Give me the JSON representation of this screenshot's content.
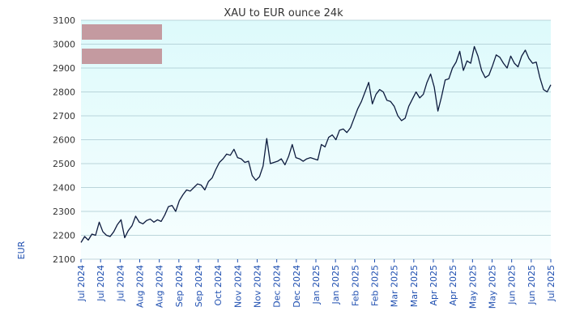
{
  "chart_data": {
    "type": "line",
    "title": "XAU to EUR ounce 24k",
    "xlabel": "",
    "ylabel": "EUR",
    "ylim": [
      2100,
      3100
    ],
    "yticks": [
      2100,
      2200,
      2300,
      2400,
      2500,
      2600,
      2700,
      2800,
      2900,
      3000,
      3100
    ],
    "xticks": [
      "Jul 2024",
      "Jul 2024",
      "Jul 2024",
      "Aug 2024",
      "Aug 2024",
      "Sep 2024",
      "Sep 2024",
      "Oct 2024",
      "Nov 2024",
      "Nov 2024",
      "Dec 2024",
      "Dec 2024",
      "Jan 2025",
      "Jan 2025",
      "Feb 2025",
      "Feb 2025",
      "Mar 2025",
      "Mar 2025",
      "Apr 2025",
      "Apr 2025",
      "May 2025",
      "May 2025",
      "Jun 2025",
      "Jun 2025",
      "Jul 2025"
    ],
    "grid": true,
    "legend_position": "top-left",
    "series": [
      {
        "name": "",
        "values": [
          2170,
          2195,
          2180,
          2205,
          2200,
          2255,
          2215,
          2200,
          2195,
          2215,
          2245,
          2265,
          2190,
          2220,
          2240,
          2280,
          2255,
          2248,
          2262,
          2268,
          2255,
          2265,
          2258,
          2285,
          2320,
          2325,
          2300,
          2345,
          2370,
          2390,
          2385,
          2400,
          2415,
          2410,
          2390,
          2425,
          2440,
          2475,
          2505,
          2520,
          2540,
          2535,
          2560,
          2525,
          2520,
          2505,
          2510,
          2450,
          2430,
          2445,
          2490,
          2605,
          2500,
          2505,
          2510,
          2520,
          2495,
          2530,
          2580,
          2525,
          2520,
          2510,
          2520,
          2525,
          2520,
          2515,
          2580,
          2570,
          2610,
          2620,
          2600,
          2640,
          2645,
          2630,
          2650,
          2690,
          2730,
          2760,
          2800,
          2840,
          2750,
          2790,
          2810,
          2800,
          2765,
          2760,
          2740,
          2700,
          2680,
          2690,
          2740,
          2770,
          2800,
          2775,
          2790,
          2840,
          2875,
          2820,
          2720,
          2780,
          2850,
          2855,
          2900,
          2925,
          2970,
          2890,
          2930,
          2920,
          2990,
          2950,
          2890,
          2860,
          2870,
          2910,
          2955,
          2945,
          2920,
          2900,
          2950,
          2920,
          2905,
          2950,
          2975,
          2940,
          2920,
          2925,
          2860,
          2810,
          2800,
          2830
        ]
      }
    ]
  },
  "colors": {
    "line": "#0d1b3e",
    "plot_bg_top": "#ddfafb",
    "plot_bg_bottom": "#f7feff",
    "grid": "#a9c7cf",
    "legend_swatch": "#c49aa0",
    "x_tick_text": "#1f4fb0"
  }
}
